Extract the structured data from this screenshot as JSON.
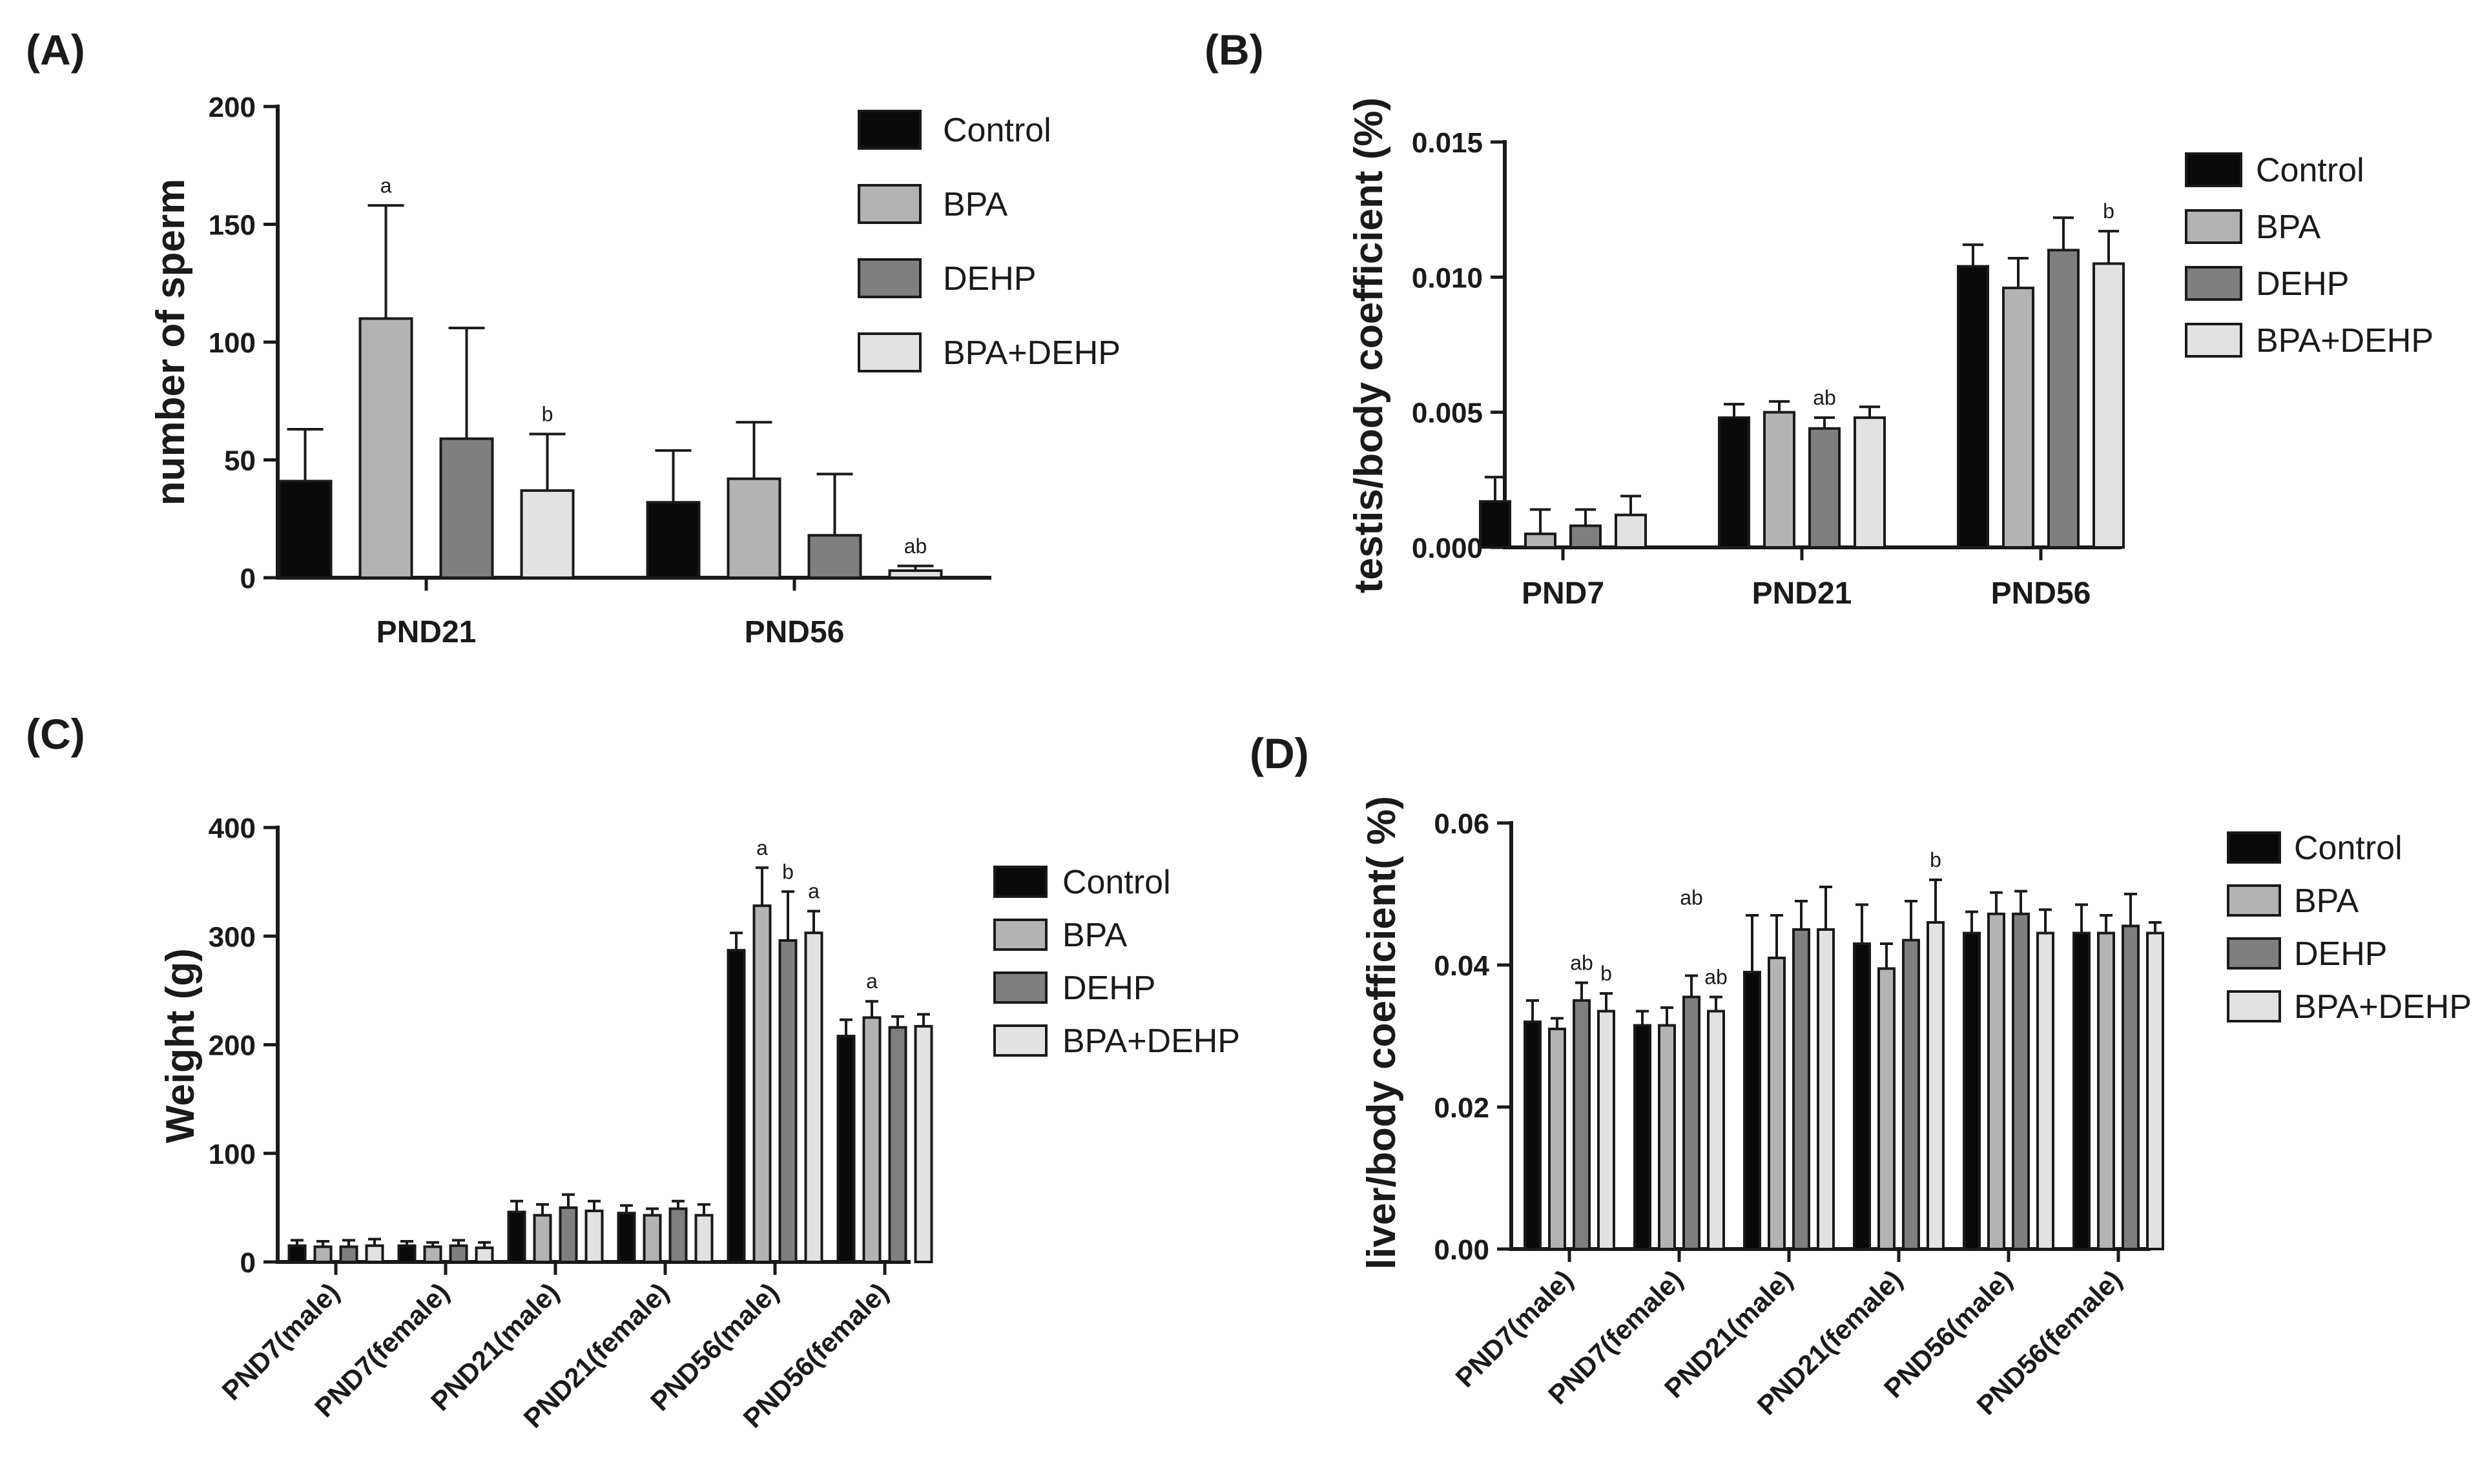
{
  "colors": {
    "control": "#0a0a0a",
    "bpa": "#b3b3b3",
    "dehp": "#7f7f7f",
    "bpa_dehp": "#e2e2e2"
  },
  "legend_labels": [
    "Control",
    "BPA",
    "DEHP",
    "BPA+DEHP"
  ],
  "chart_data": [
    {
      "id": "A",
      "panel_label": "(A)",
      "type": "bar",
      "ylabel": "number of sperm",
      "xlabel": "",
      "ylim": [
        0,
        200
      ],
      "yticks": [
        "0",
        "50",
        "100",
        "150",
        "200"
      ],
      "categories": [
        "PND21",
        "PND56"
      ],
      "series": [
        {
          "name": "Control",
          "values": [
            41,
            32
          ],
          "errors": [
            22,
            22
          ]
        },
        {
          "name": "BPA",
          "values": [
            110,
            42
          ],
          "errors": [
            48,
            24
          ]
        },
        {
          "name": "DEHP",
          "values": [
            59,
            18
          ],
          "errors": [
            47,
            26
          ]
        },
        {
          "name": "BPA+DEHP",
          "values": [
            37,
            3
          ],
          "errors": [
            24,
            2
          ]
        }
      ],
      "annotations": [
        {
          "category": 0,
          "series": 1,
          "text": "a"
        },
        {
          "category": 0,
          "series": 3,
          "text": "b"
        },
        {
          "category": 1,
          "series": 3,
          "text": "ab"
        }
      ],
      "legend_position": "top-right"
    },
    {
      "id": "B",
      "panel_label": "(B)",
      "type": "bar",
      "ylabel": "testis/body coefficient    (%)",
      "xlabel": "",
      "ylim": [
        0,
        0.015
      ],
      "yticks": [
        "0.000",
        "0.005",
        "0.010",
        "0.015"
      ],
      "categories": [
        "PND7",
        "PND21",
        "PND56"
      ],
      "series": [
        {
          "name": "Control",
          "values": [
            0.0017,
            0.0048,
            0.0104
          ],
          "errors": [
            0.0009,
            0.0005,
            0.0008
          ]
        },
        {
          "name": "BPA",
          "values": [
            0.0005,
            0.005,
            0.0096
          ],
          "errors": [
            0.0009,
            0.0004,
            0.0011
          ]
        },
        {
          "name": "DEHP",
          "values": [
            0.0008,
            0.0044,
            0.011
          ],
          "errors": [
            0.0006,
            0.0004,
            0.0012
          ]
        },
        {
          "name": "BPA+DEHP",
          "values": [
            0.0012,
            0.0048,
            0.0105
          ],
          "errors": [
            0.0007,
            0.0004,
            0.0012
          ]
        }
      ],
      "annotations": [
        {
          "category": 1,
          "series": 2,
          "text": "ab"
        },
        {
          "category": 2,
          "series": 3,
          "text": "b"
        }
      ],
      "legend_position": "top-right"
    },
    {
      "id": "C",
      "panel_label": "(C)",
      "type": "bar",
      "ylabel": "Weight  (g)",
      "xlabel": "",
      "ylim": [
        0,
        400
      ],
      "yticks": [
        "0",
        "100",
        "200",
        "300",
        "400"
      ],
      "categories": [
        "PND7(male)",
        "PND7(female)",
        "PND21(male)",
        "PND21(female)",
        "PND56(male)",
        "PND56(female)"
      ],
      "series": [
        {
          "name": "Control",
          "values": [
            15,
            15,
            46,
            45,
            287,
            208
          ],
          "errors": [
            5,
            4,
            10,
            7,
            16,
            15
          ]
        },
        {
          "name": "BPA",
          "values": [
            14,
            14,
            43,
            43,
            328,
            225
          ],
          "errors": [
            5,
            4,
            10,
            6,
            35,
            15
          ]
        },
        {
          "name": "DEHP",
          "values": [
            14,
            15,
            50,
            49,
            296,
            216
          ],
          "errors": [
            6,
            5,
            12,
            7,
            45,
            10
          ]
        },
        {
          "name": "BPA+DEHP",
          "values": [
            15,
            13,
            47,
            43,
            303,
            217
          ],
          "errors": [
            6,
            5,
            9,
            10,
            20,
            11
          ]
        }
      ],
      "annotations": [
        {
          "category": 4,
          "series": 1,
          "text": "a"
        },
        {
          "category": 4,
          "series": 2,
          "text": "b"
        },
        {
          "category": 4,
          "series": 3,
          "text": "a"
        },
        {
          "category": 5,
          "series": 1,
          "text": "a"
        }
      ],
      "legend_position": "right"
    },
    {
      "id": "D",
      "panel_label": "(D)",
      "type": "bar",
      "ylabel": "liver/body coefficient( %)",
      "xlabel": "",
      "ylim": [
        0,
        0.06
      ],
      "yticks": [
        "0.00",
        "0.02",
        "0.04",
        "0.06"
      ],
      "categories": [
        "PND7(male)",
        "PND7(female)",
        "PND21(male)",
        "PND21(female)",
        "PND56(male)",
        "PND56(female)"
      ],
      "series": [
        {
          "name": "Control",
          "values": [
            0.032,
            0.0315,
            0.039,
            0.043,
            0.0445,
            0.0445
          ],
          "errors": [
            0.003,
            0.002,
            0.008,
            0.0055,
            0.003,
            0.004
          ]
        },
        {
          "name": "BPA",
          "values": [
            0.031,
            0.0315,
            0.041,
            0.0395,
            0.0472,
            0.0445
          ],
          "errors": [
            0.0015,
            0.0025,
            0.006,
            0.0035,
            0.003,
            0.0025
          ]
        },
        {
          "name": "DEHP",
          "values": [
            0.035,
            0.0355,
            0.045,
            0.0435,
            0.0472,
            0.0455
          ],
          "errors": [
            0.0025,
            0.003,
            0.004,
            0.0055,
            0.0032,
            0.0045
          ]
        },
        {
          "name": "BPA+DEHP",
          "values": [
            0.0335,
            0.0335,
            0.045,
            0.046,
            0.0445,
            0.0445
          ],
          "errors": [
            0.0025,
            0.002,
            0.006,
            0.006,
            0.0033,
            0.0015
          ]
        }
      ],
      "annotations": [
        {
          "category": 0,
          "series": 2,
          "text": "ab"
        },
        {
          "category": 0,
          "series": 3,
          "text": "b"
        },
        {
          "category": 1,
          "series": 2,
          "text": "ab",
          "elevated": true
        },
        {
          "category": 1,
          "series": 3,
          "text": "ab"
        },
        {
          "category": 3,
          "series": 3,
          "text": "b"
        }
      ],
      "legend_position": "right"
    }
  ]
}
